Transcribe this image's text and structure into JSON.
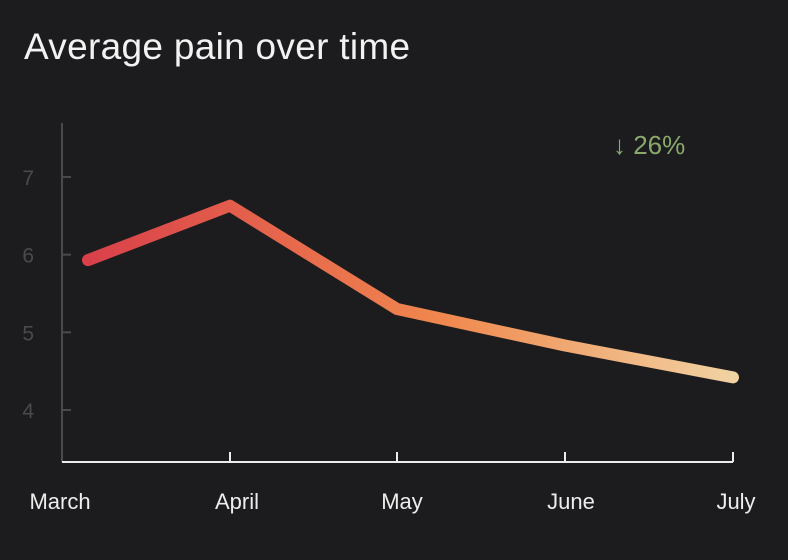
{
  "chart_data": {
    "type": "line",
    "title": "Average pain over time",
    "xlabel": "",
    "ylabel": "",
    "categories": [
      "March",
      "April",
      "May",
      "June",
      "July"
    ],
    "series": [
      {
        "name": "Average pain",
        "values": [
          5.93,
          6.63,
          5.3,
          4.83,
          4.42
        ]
      }
    ],
    "ylim": [
      3.4,
      7.7
    ],
    "yticks": [
      4,
      5,
      6,
      7
    ],
    "grid": false,
    "legend": "none",
    "annotation": "↓ 26%",
    "colors": {
      "background": "#1c1c1e",
      "gradient_start": "#d9404a",
      "gradient_mid": "#f0884e",
      "gradient_end": "#f1d2a2",
      "axis": "#ececec",
      "y_axis": "#4a4a4c",
      "annotation": "#8aa86c"
    }
  }
}
